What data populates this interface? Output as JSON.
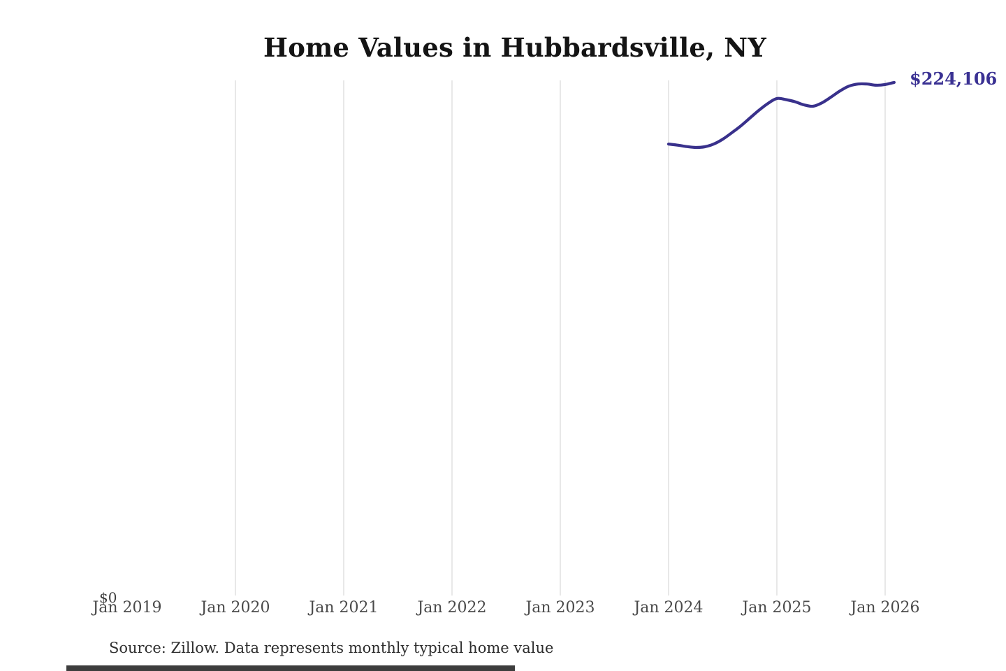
{
  "title": "Home Values in Hubbardsville, NY",
  "annotation": {
    "end_value_label": "$224,106"
  },
  "axis": {
    "zero_label": "$0"
  },
  "source_note": "Source: Zillow. Data represents monthly typical home value",
  "colors": {
    "line": "#39318c",
    "end_label": "#3a3193",
    "grid": "#d8d8d8",
    "title": "#141414",
    "tick": "#4a4a4a",
    "source": "#2e2e2e"
  },
  "chart_data": {
    "type": "line",
    "title": "Home Values in Hubbardsville, NY",
    "xlabel": "",
    "ylabel": "",
    "ylim": [
      0,
      225000
    ],
    "grid": "vertical-only",
    "legend_position": "none",
    "x_tick_labels": [
      "Jan 2019",
      "Jan 2020",
      "Jan 2021",
      "Jan 2022",
      "Jan 2023",
      "Jan 2024",
      "Jan 2025",
      "Jan 2026"
    ],
    "gridline_ticks": [
      "Jan 2020",
      "Jan 2021",
      "Jan 2022",
      "Jan 2023",
      "Jan 2024",
      "Jan 2025",
      "Jan 2026"
    ],
    "series": [
      {
        "name": "Monthly typical home value",
        "x": [
          "Jan 2024",
          "Feb 2024",
          "Mar 2024",
          "Apr 2024",
          "May 2024",
          "Jun 2024",
          "Jul 2024",
          "Aug 2024",
          "Sep 2024",
          "Oct 2024",
          "Nov 2024",
          "Dec 2024",
          "Jan 2025",
          "Feb 2025",
          "Mar 2025",
          "Apr 2025",
          "May 2025",
          "Jun 2025",
          "Jul 2025",
          "Aug 2025",
          "Sep 2025",
          "Oct 2025",
          "Nov 2025",
          "Dec 2025",
          "Jan 2026",
          "Feb 2026"
        ],
        "values": [
          197200,
          196700,
          196100,
          195700,
          196000,
          197200,
          199300,
          202100,
          205100,
          208500,
          211900,
          214900,
          217100,
          216600,
          215700,
          214300,
          213700,
          215200,
          217700,
          220400,
          222500,
          223400,
          223400,
          222900,
          223200,
          224106
        ]
      }
    ],
    "end_label": "$224,106",
    "zero_label": "$0"
  }
}
